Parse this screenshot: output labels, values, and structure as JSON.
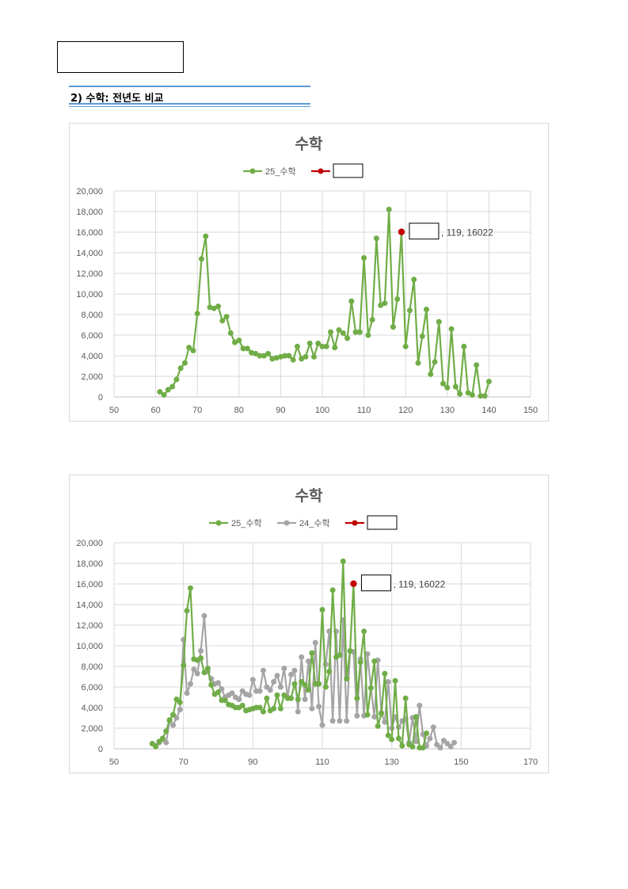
{
  "heading": {
    "text": "2) 수학: 전년도 비교"
  },
  "colors": {
    "series_25": "#70ad47",
    "series_24": "#a5a5a5",
    "highlight": "#c00000"
  },
  "chart_data": [
    {
      "type": "line",
      "title": "수학",
      "xlim": [
        50,
        150
      ],
      "ylim": [
        0,
        20000
      ],
      "xticks": [
        50,
        60,
        70,
        80,
        90,
        100,
        110,
        120,
        130,
        140,
        150
      ],
      "yticks": [
        "0",
        "2,000",
        "4,000",
        "6,000",
        "8,000",
        "10,000",
        "12,000",
        "14,000",
        "16,000",
        "18,000",
        "20,000"
      ],
      "legend_position": "top",
      "grid": true,
      "series": [
        {
          "name": "25_수학",
          "color": "#70ad47",
          "x": [
            61,
            62,
            63,
            64,
            65,
            66,
            67,
            68,
            69,
            70,
            71,
            72,
            73,
            74,
            75,
            76,
            77,
            78,
            79,
            80,
            81,
            82,
            83,
            84,
            85,
            86,
            87,
            88,
            89,
            90,
            91,
            92,
            93,
            94,
            95,
            96,
            97,
            98,
            99,
            100,
            101,
            102,
            103,
            104,
            105,
            106,
            107,
            108,
            109,
            110,
            111,
            112,
            113,
            114,
            115,
            116,
            117,
            118,
            119,
            120,
            121,
            122,
            123,
            124,
            125,
            126,
            127,
            128,
            129,
            130,
            131,
            132,
            133,
            134,
            135,
            136,
            137,
            138,
            139,
            140
          ],
          "y": [
            500,
            200,
            700,
            1000,
            1700,
            2800,
            3300,
            4800,
            4500,
            8100,
            13400,
            15600,
            8700,
            8600,
            8800,
            7400,
            7800,
            6200,
            5300,
            5500,
            4700,
            4700,
            4300,
            4200,
            4000,
            4000,
            4200,
            3700,
            3800,
            3900,
            4000,
            4000,
            3600,
            4900,
            3700,
            3900,
            5200,
            3900,
            5200,
            4900,
            4900,
            6300,
            4800,
            6500,
            6200,
            5700,
            9300,
            6300,
            6300,
            13500,
            6000,
            7500,
            15400,
            8900,
            9100,
            18200,
            6800,
            9500,
            16000,
            4900,
            8400,
            11400,
            3300,
            5900,
            8500,
            2200,
            3400,
            7300,
            1300,
            900,
            6600,
            1000,
            300,
            4900,
            400,
            200,
            3100,
            100,
            100,
            1500
          ]
        },
        {
          "name": "",
          "color": "#c00000",
          "x": [
            119
          ],
          "y": [
            16022
          ]
        }
      ],
      "annotation": {
        "x": 119,
        "y": 16022,
        "text": "119, 16022"
      }
    },
    {
      "type": "line",
      "title": "수학",
      "xlim": [
        50,
        170
      ],
      "ylim": [
        0,
        20000
      ],
      "xticks": [
        50,
        70,
        90,
        110,
        130,
        150,
        170
      ],
      "yticks": [
        "0",
        "2,000",
        "4,000",
        "6,000",
        "8,000",
        "10,000",
        "12,000",
        "14,000",
        "16,000",
        "18,000",
        "20,000"
      ],
      "legend_position": "top",
      "grid": true,
      "series": [
        {
          "name": "25_수학",
          "color": "#70ad47",
          "x": [
            61,
            62,
            63,
            64,
            65,
            66,
            67,
            68,
            69,
            70,
            71,
            72,
            73,
            74,
            75,
            76,
            77,
            78,
            79,
            80,
            81,
            82,
            83,
            84,
            85,
            86,
            87,
            88,
            89,
            90,
            91,
            92,
            93,
            94,
            95,
            96,
            97,
            98,
            99,
            100,
            101,
            102,
            103,
            104,
            105,
            106,
            107,
            108,
            109,
            110,
            111,
            112,
            113,
            114,
            115,
            116,
            117,
            118,
            119,
            120,
            121,
            122,
            123,
            124,
            125,
            126,
            127,
            128,
            129,
            130,
            131,
            132,
            133,
            134,
            135,
            136,
            137,
            138,
            139,
            140
          ],
          "y": [
            500,
            200,
            700,
            1000,
            1700,
            2800,
            3300,
            4800,
            4500,
            8100,
            13400,
            15600,
            8700,
            8600,
            8800,
            7400,
            7800,
            6200,
            5300,
            5500,
            4700,
            4700,
            4300,
            4200,
            4000,
            4000,
            4200,
            3700,
            3800,
            3900,
            4000,
            4000,
            3600,
            4900,
            3700,
            3900,
            5200,
            3900,
            5200,
            4900,
            4900,
            6300,
            4800,
            6500,
            6200,
            5700,
            9300,
            6300,
            6300,
            13500,
            6000,
            7500,
            15400,
            8900,
            9100,
            18200,
            6800,
            9500,
            16000,
            4900,
            8400,
            11400,
            3300,
            5900,
            8500,
            2200,
            3400,
            7300,
            1300,
            900,
            6600,
            1000,
            300,
            4900,
            400,
            200,
            3100,
            100,
            100,
            1500
          ]
        },
        {
          "name": "24_수학",
          "color": "#a5a5a5",
          "x": [
            62,
            63,
            64,
            65,
            66,
            67,
            68,
            69,
            70,
            71,
            72,
            73,
            74,
            75,
            76,
            77,
            78,
            79,
            80,
            81,
            82,
            83,
            84,
            85,
            86,
            87,
            88,
            89,
            90,
            91,
            92,
            93,
            94,
            95,
            96,
            97,
            98,
            99,
            100,
            101,
            102,
            103,
            104,
            105,
            106,
            107,
            108,
            109,
            110,
            111,
            112,
            113,
            114,
            115,
            116,
            117,
            118,
            119,
            120,
            121,
            122,
            123,
            124,
            125,
            126,
            127,
            128,
            129,
            130,
            131,
            132,
            133,
            134,
            135,
            136,
            137,
            138,
            139,
            140,
            141,
            142,
            143,
            144,
            145,
            146,
            147,
            148
          ],
          "y": [
            300,
            600,
            900,
            600,
            2700,
            2300,
            3000,
            3800,
            10600,
            5400,
            6300,
            7700,
            7300,
            9500,
            12900,
            7500,
            6800,
            6300,
            6400,
            5800,
            5000,
            5200,
            5400,
            5000,
            4800,
            5600,
            5300,
            5200,
            6700,
            5600,
            5600,
            7600,
            6000,
            5700,
            6500,
            7100,
            6000,
            7800,
            5000,
            7200,
            7600,
            3600,
            8900,
            4800,
            8500,
            3900,
            10300,
            4100,
            2300,
            8200,
            11400,
            2700,
            11400,
            2700,
            12500,
            2700,
            9500,
            9400,
            3200,
            8700,
            3200,
            9200,
            5900,
            3100,
            8600,
            3500,
            2600,
            6500,
            2000,
            3100,
            2100,
            2700,
            2900,
            600,
            3000,
            700,
            4200,
            1400,
            300,
            1000,
            2100,
            400,
            100,
            800,
            500,
            200,
            600
          ]
        },
        {
          "name": "",
          "color": "#c00000",
          "x": [
            119
          ],
          "y": [
            16022
          ]
        }
      ],
      "annotation": {
        "x": 119,
        "y": 16022,
        "text": "119, 16022"
      }
    }
  ]
}
